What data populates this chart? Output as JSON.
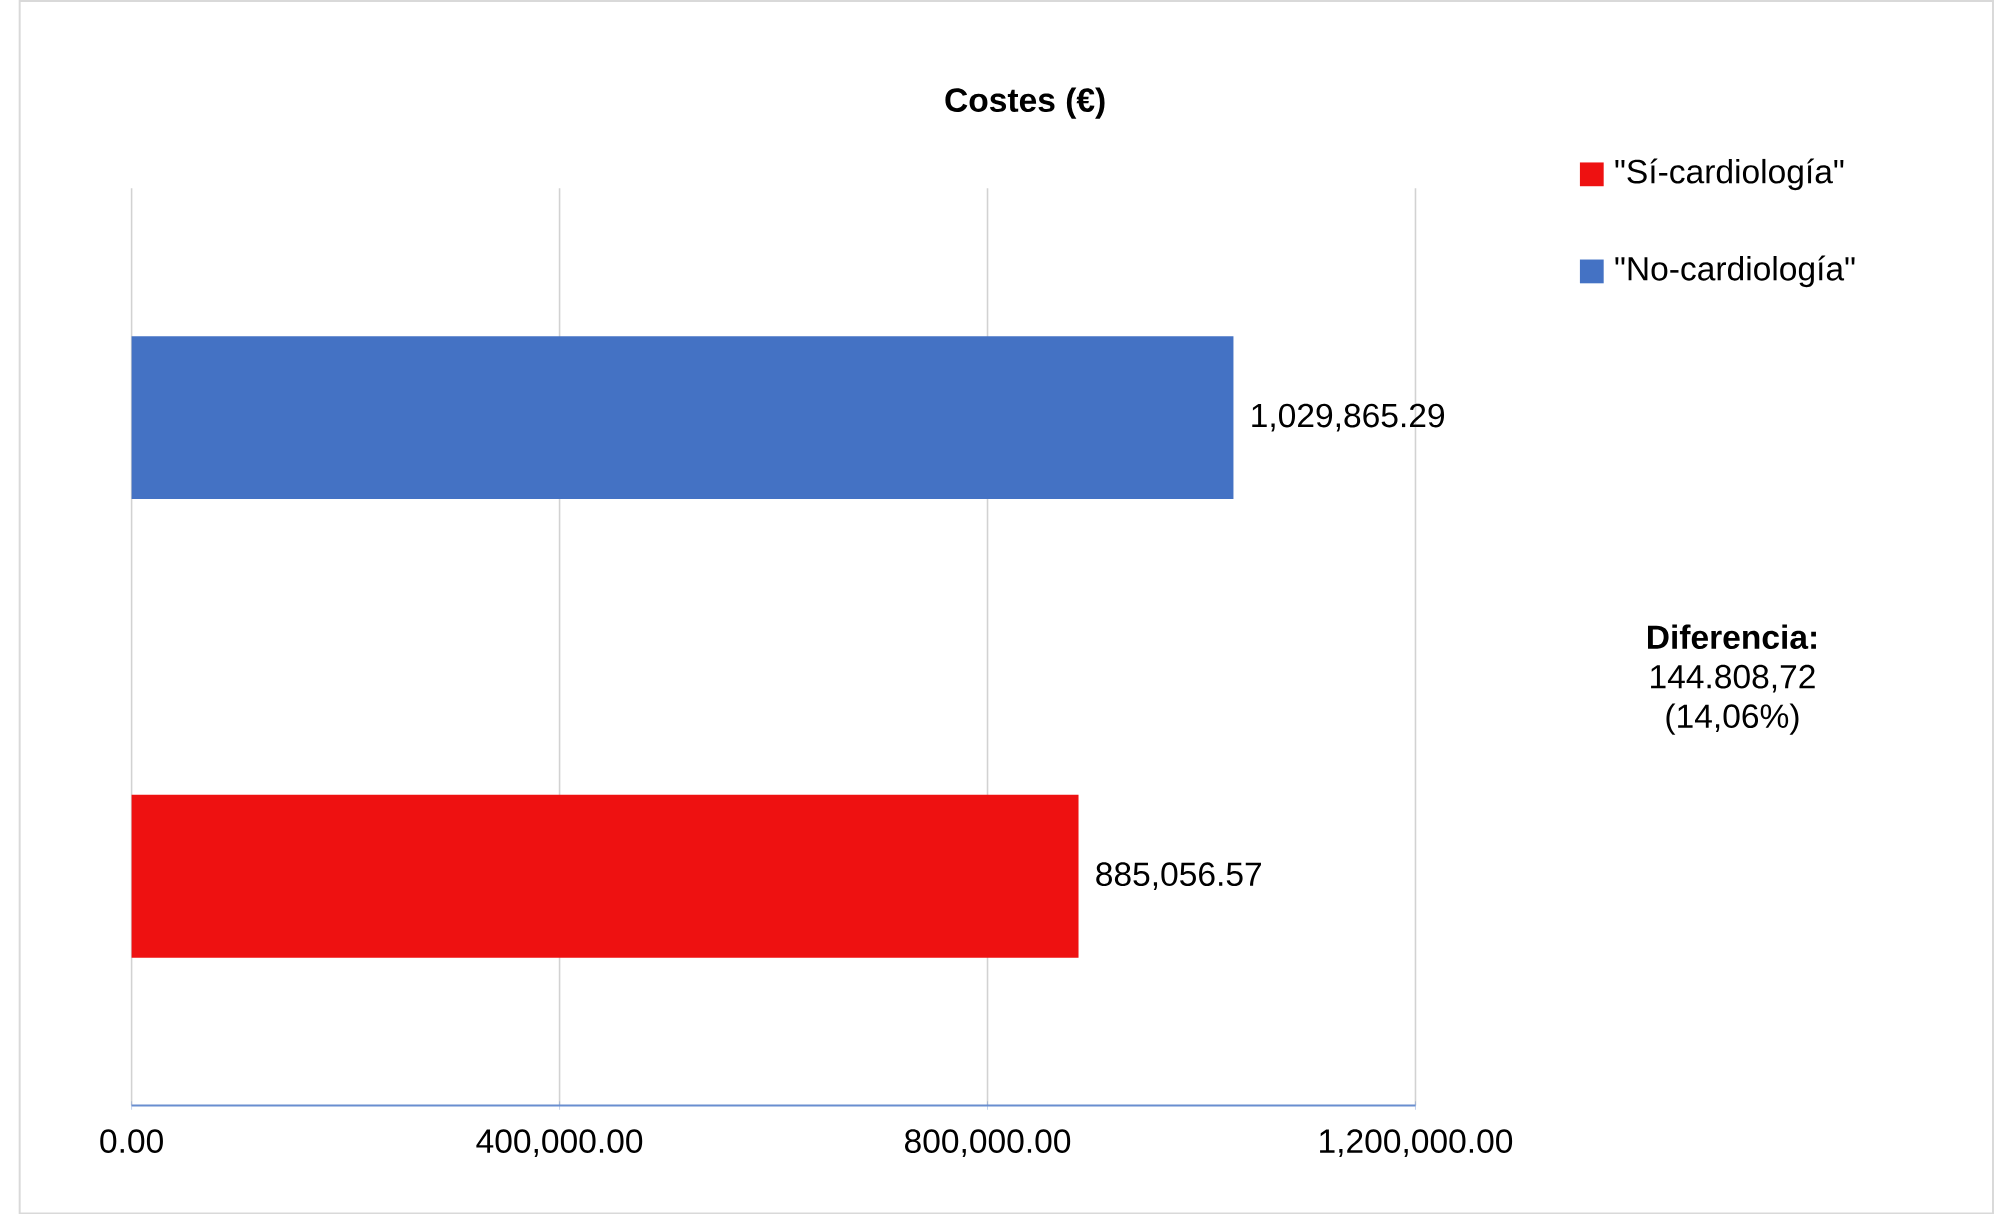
{
  "chart_data": {
    "type": "bar",
    "orientation": "horizontal",
    "title": "Costes (€)",
    "categories": [
      null,
      null
    ],
    "series": [
      {
        "name": "\"Sí-cardiología\"",
        "color": "#ee1111",
        "values": [
          null,
          885056.57
        ],
        "value_labels": [
          null,
          "885,056.57"
        ]
      },
      {
        "name": "\"No-cardiología\"",
        "color": "#4472c4",
        "values": [
          1029865.29,
          null
        ],
        "value_labels": [
          "1,029,865.29",
          null
        ]
      }
    ],
    "xlim": [
      0,
      1200000
    ],
    "xticks": [
      {
        "value": 0,
        "label": "0.00"
      },
      {
        "value": 400000,
        "label": "400,000.00"
      },
      {
        "value": 800000,
        "label": "800,000.00"
      },
      {
        "value": 1200000,
        "label": "1,200,000.00"
      }
    ],
    "grid": "x",
    "legend": "top right",
    "annotations": [
      "**Diferencia:** 144.808,72 (14,06%)"
    ]
  }
}
